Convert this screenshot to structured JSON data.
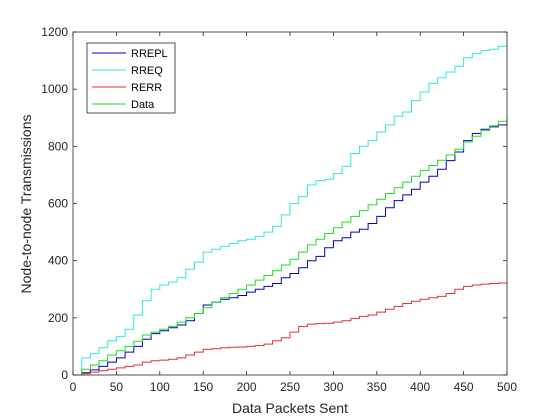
{
  "chart_data": {
    "type": "line",
    "title": "",
    "xlabel": "Data Packets Sent",
    "ylabel": "Node-to-node Transmissions",
    "xlim": [
      0,
      500
    ],
    "ylim": [
      0,
      1200
    ],
    "xticks": [
      0,
      50,
      100,
      150,
      200,
      250,
      300,
      350,
      400,
      450,
      500
    ],
    "yticks": [
      0,
      200,
      400,
      600,
      800,
      1000,
      1200
    ],
    "grid": false,
    "legend_position": "top-left",
    "series": [
      {
        "name": "RREPL",
        "color": "#0000cc",
        "x": [
          0,
          10,
          20,
          30,
          40,
          50,
          60,
          70,
          80,
          90,
          100,
          110,
          120,
          130,
          140,
          150,
          160,
          170,
          180,
          190,
          200,
          210,
          220,
          230,
          240,
          250,
          260,
          270,
          280,
          290,
          300,
          310,
          320,
          330,
          340,
          350,
          360,
          370,
          380,
          390,
          400,
          410,
          420,
          430,
          440,
          450,
          460,
          470,
          480,
          490,
          500
        ],
        "y": [
          0,
          8,
          18,
          30,
          45,
          60,
          80,
          100,
          125,
          145,
          155,
          165,
          175,
          190,
          215,
          245,
          255,
          265,
          270,
          278,
          290,
          300,
          310,
          320,
          340,
          355,
          375,
          400,
          415,
          445,
          470,
          480,
          500,
          510,
          530,
          555,
          585,
          610,
          630,
          650,
          675,
          695,
          720,
          750,
          780,
          820,
          845,
          860,
          868,
          875,
          885
        ]
      },
      {
        "name": "RREQ",
        "color": "#33e6e6",
        "x": [
          0,
          10,
          20,
          30,
          40,
          50,
          60,
          70,
          80,
          90,
          100,
          110,
          120,
          130,
          140,
          150,
          160,
          170,
          180,
          190,
          200,
          210,
          220,
          230,
          240,
          250,
          260,
          270,
          280,
          290,
          300,
          310,
          320,
          330,
          340,
          350,
          360,
          370,
          380,
          390,
          400,
          410,
          420,
          430,
          440,
          450,
          460,
          470,
          480,
          490,
          500
        ],
        "y": [
          0,
          60,
          75,
          95,
          120,
          135,
          160,
          210,
          260,
          300,
          315,
          325,
          340,
          370,
          395,
          430,
          440,
          450,
          460,
          470,
          475,
          485,
          500,
          520,
          560,
          600,
          625,
          665,
          680,
          685,
          705,
          730,
          775,
          800,
          820,
          850,
          875,
          905,
          920,
          960,
          990,
          1020,
          1040,
          1060,
          1080,
          1110,
          1125,
          1135,
          1140,
          1150,
          1170
        ]
      },
      {
        "name": "RERR",
        "color": "#e03030",
        "x": [
          0,
          10,
          20,
          30,
          40,
          50,
          60,
          70,
          80,
          90,
          100,
          110,
          120,
          130,
          140,
          150,
          160,
          170,
          180,
          190,
          200,
          210,
          220,
          230,
          240,
          250,
          260,
          270,
          280,
          290,
          300,
          310,
          320,
          330,
          340,
          350,
          360,
          370,
          380,
          390,
          400,
          410,
          420,
          430,
          440,
          450,
          460,
          470,
          480,
          490,
          500
        ],
        "y": [
          0,
          5,
          10,
          15,
          20,
          25,
          30,
          35,
          45,
          50,
          52,
          55,
          60,
          70,
          80,
          90,
          92,
          95,
          97,
          98,
          100,
          103,
          108,
          120,
          130,
          150,
          170,
          178,
          180,
          181,
          185,
          190,
          198,
          205,
          210,
          220,
          230,
          240,
          250,
          258,
          265,
          270,
          275,
          285,
          300,
          310,
          315,
          318,
          320,
          322,
          325
        ]
      },
      {
        "name": "Data",
        "color": "#22dd22",
        "x": [
          0,
          10,
          20,
          30,
          40,
          50,
          60,
          70,
          80,
          90,
          100,
          110,
          120,
          130,
          140,
          150,
          160,
          170,
          180,
          190,
          200,
          210,
          220,
          230,
          240,
          250,
          260,
          270,
          280,
          290,
          300,
          310,
          320,
          330,
          340,
          350,
          360,
          370,
          380,
          390,
          400,
          410,
          420,
          430,
          440,
          450,
          460,
          470,
          480,
          490,
          500
        ],
        "y": [
          0,
          20,
          35,
          50,
          70,
          85,
          100,
          118,
          140,
          150,
          160,
          170,
          185,
          200,
          215,
          235,
          255,
          270,
          285,
          300,
          315,
          332,
          348,
          365,
          385,
          405,
          430,
          455,
          475,
          495,
          515,
          535,
          555,
          575,
          595,
          615,
          635,
          655,
          675,
          695,
          715,
          733,
          751,
          770,
          790,
          815,
          835,
          855,
          872,
          888,
          910
        ]
      }
    ]
  }
}
